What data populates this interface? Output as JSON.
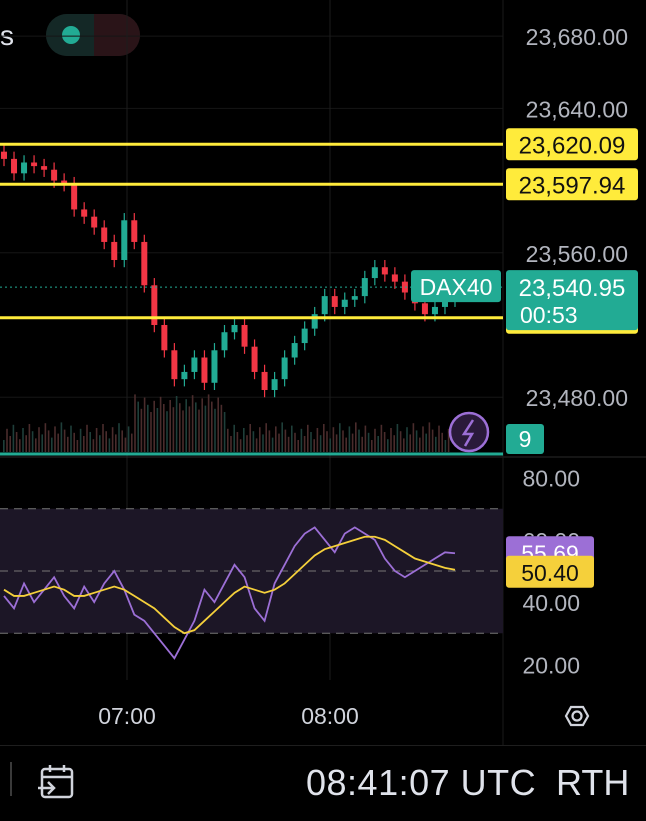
{
  "header": {
    "title_fragment": "s",
    "status_icon": "green-dot-icon",
    "wave_icon": "wave-icon",
    "wave_glyph": "≈"
  },
  "price_scale": {
    "ticks": [
      "23,680.00",
      "23,640.00",
      "23,560.00",
      "23,480.00"
    ],
    "tick_values": [
      23680,
      23640,
      23560,
      23480
    ],
    "range": [
      23448,
      23700
    ]
  },
  "horizontal_lines": [
    {
      "label": "23,620.09",
      "value": 23620.09
    },
    {
      "label": "23,597.94",
      "value": 23597.94
    },
    {
      "label": "23,524.00",
      "value": 23524.0
    }
  ],
  "last_price": {
    "symbol": "DAX40",
    "price": "23,540.95",
    "countdown": "00:53",
    "value": 23540.95
  },
  "volume": {
    "badge": "9"
  },
  "rsi_scale": {
    "ticks": [
      "80.00",
      "60.00",
      "40.00",
      "20.00"
    ],
    "tick_values": [
      80,
      60,
      40,
      20
    ],
    "range": [
      15,
      85
    ],
    "band": [
      30,
      70
    ]
  },
  "rsi_values": {
    "rsi": "55.69",
    "rsi_value": 55.69,
    "ma": "50.40",
    "ma_value": 50.4
  },
  "time_axis": {
    "labels": [
      "07:00",
      "08:00"
    ]
  },
  "bottom_bar": {
    "clock": "08:41:07 UTC",
    "session": "RTH",
    "goto_icon": "calendar-goto-icon"
  },
  "colors": {
    "up": "#22ab94",
    "down": "#f23645",
    "hline": "#ffeb3b",
    "rsi": "#9c6fd6",
    "rsi_ma": "#f5d03b",
    "volume": "#5a3a3a"
  },
  "chart_data": {
    "type": "candlestick",
    "title": "DAX40",
    "x": [
      "06:27",
      "06:30",
      "06:33",
      "06:36",
      "06:39",
      "06:42",
      "06:45",
      "06:48",
      "06:51",
      "06:54",
      "06:57",
      "07:00",
      "07:03",
      "07:06",
      "07:09",
      "07:12",
      "07:15",
      "07:18",
      "07:21",
      "07:24",
      "07:27",
      "07:30",
      "07:33",
      "07:36",
      "07:39",
      "07:42",
      "07:45",
      "07:48",
      "07:51",
      "07:54",
      "07:57",
      "08:00",
      "08:03",
      "08:06",
      "08:09",
      "08:12",
      "08:15",
      "08:18",
      "08:21",
      "08:24",
      "08:27",
      "08:30",
      "08:33",
      "08:36",
      "08:39",
      "08:41"
    ],
    "close": [
      23612,
      23604,
      23610,
      23608,
      23606,
      23600,
      23598,
      23584,
      23580,
      23574,
      23566,
      23556,
      23578,
      23566,
      23542,
      23520,
      23506,
      23490,
      23494,
      23502,
      23488,
      23506,
      23516,
      23520,
      23508,
      23494,
      23484,
      23490,
      23502,
      23510,
      23518,
      23526,
      23536,
      23530,
      23534,
      23536,
      23546,
      23552,
      23548,
      23544,
      23538,
      23532,
      23526,
      23530,
      23534,
      23540.95
    ],
    "volume_marker": "low, rising after 07:00",
    "rsi": [
      42,
      38,
      46,
      40,
      44,
      48,
      42,
      38,
      45,
      40,
      46,
      50,
      44,
      36,
      34,
      30,
      26,
      22,
      28,
      34,
      44,
      40,
      46,
      52,
      48,
      38,
      34,
      46,
      52,
      58,
      62,
      64,
      60,
      56,
      62,
      64,
      62,
      60,
      54,
      50,
      48,
      50,
      52,
      54,
      56,
      55.69
    ],
    "rsi_ma": [
      44,
      42,
      42,
      43,
      44,
      45,
      44,
      42,
      42,
      43,
      44,
      45,
      44,
      42,
      40,
      38,
      35,
      32,
      30,
      31,
      34,
      37,
      40,
      43,
      45,
      44,
      43,
      44,
      46,
      49,
      52,
      55,
      57,
      58,
      59,
      60,
      61,
      61,
      60,
      58,
      56,
      54,
      53,
      52,
      51,
      50.4
    ],
    "ylim": [
      23448,
      23700
    ],
    "rsi_ylim": [
      15,
      85
    ]
  }
}
